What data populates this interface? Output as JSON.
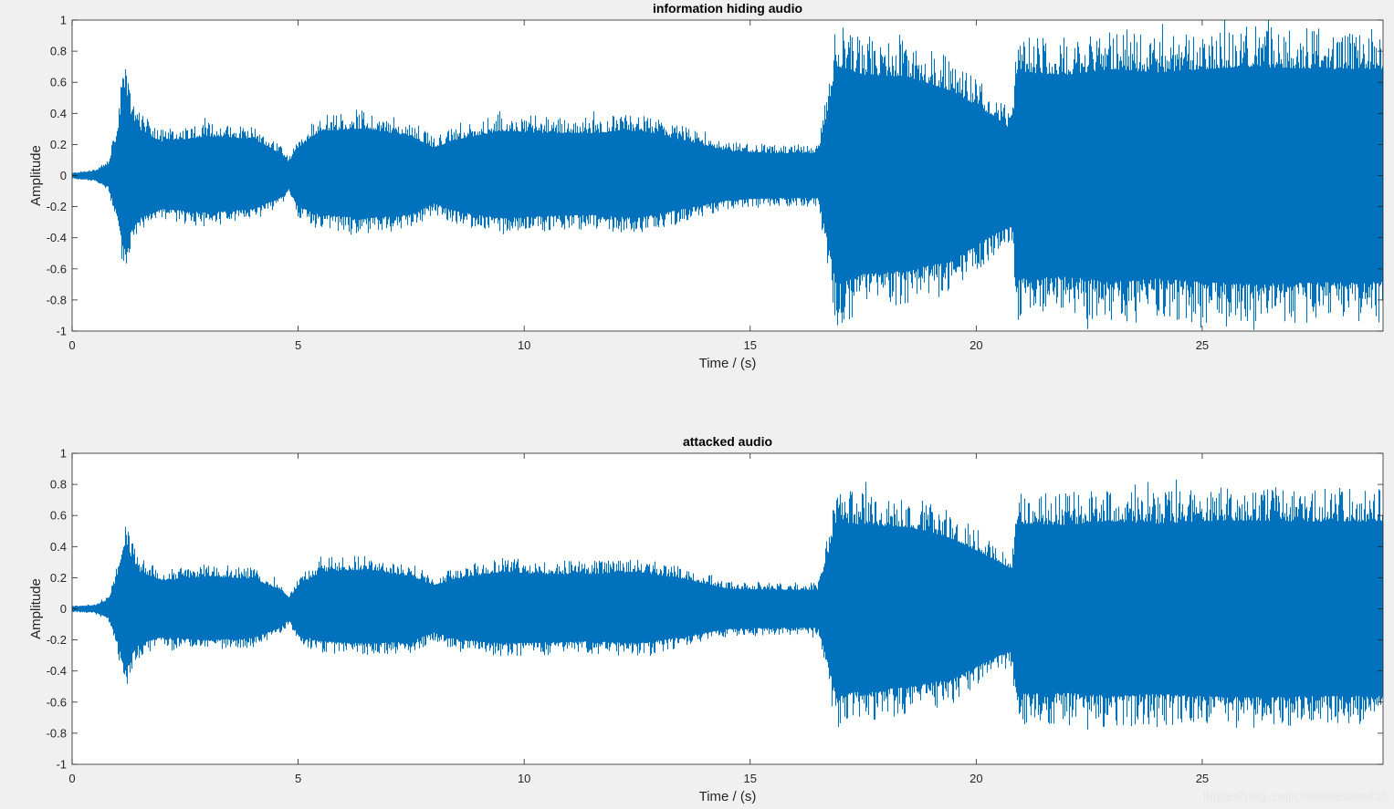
{
  "figure": {
    "background": "#f0f0f0",
    "axes_background": "#ffffff",
    "line_color": "#0072bd",
    "watermark": "https://blog.csdn.net/mahoon411"
  },
  "chart_data": [
    {
      "type": "line",
      "title": "information hiding audio",
      "xlabel": "Time / (s)",
      "ylabel": "Amplitude",
      "xlim": [
        0,
        29
      ],
      "ylim": [
        -1,
        1
      ],
      "xticks": [
        0,
        5,
        10,
        15,
        20,
        25
      ],
      "yticks": [
        -1,
        -0.8,
        -0.6,
        -0.4,
        -0.2,
        0,
        0.2,
        0.4,
        0.6,
        0.8,
        1
      ],
      "ytick_labels": [
        "-1",
        "-0.8",
        "-0.6",
        "-0.4",
        "-0.2",
        "0",
        "0.2",
        "0.4",
        "0.6",
        "0.8",
        "1"
      ],
      "grid": false,
      "envelope": {
        "time": [
          0,
          0.5,
          0.8,
          1.0,
          1.1,
          1.2,
          1.3,
          1.5,
          2.0,
          3.0,
          4.0,
          4.6,
          4.8,
          5.0,
          5.5,
          6.5,
          7.5,
          8.0,
          8.5,
          9.5,
          10.5,
          11.5,
          12.5,
          13.5,
          14.5,
          15.5,
          16.5,
          16.7,
          16.9,
          17.5,
          18.5,
          19.5,
          20.5,
          20.8,
          20.9,
          21.0,
          22.0,
          23.0,
          24.0,
          25.0,
          26.0,
          27.0,
          28.0,
          29.0
        ],
        "upper": [
          0.02,
          0.04,
          0.1,
          0.35,
          0.6,
          0.75,
          0.55,
          0.4,
          0.3,
          0.35,
          0.33,
          0.2,
          0.12,
          0.25,
          0.4,
          0.42,
          0.35,
          0.25,
          0.32,
          0.4,
          0.38,
          0.38,
          0.4,
          0.32,
          0.22,
          0.2,
          0.2,
          0.55,
          0.98,
          0.9,
          0.88,
          0.75,
          0.5,
          0.4,
          0.95,
          0.92,
          0.9,
          0.95,
          0.92,
          0.95,
          0.97,
          0.96,
          0.95,
          0.95
        ],
        "lower": [
          -0.02,
          -0.04,
          -0.1,
          -0.35,
          -0.55,
          -0.72,
          -0.5,
          -0.38,
          -0.3,
          -0.33,
          -0.3,
          -0.2,
          -0.12,
          -0.28,
          -0.35,
          -0.38,
          -0.35,
          -0.25,
          -0.32,
          -0.38,
          -0.36,
          -0.35,
          -0.38,
          -0.3,
          -0.22,
          -0.2,
          -0.2,
          -0.55,
          -0.97,
          -0.88,
          -0.85,
          -0.75,
          -0.5,
          -0.45,
          -0.95,
          -0.92,
          -0.9,
          -0.95,
          -0.92,
          -0.95,
          -0.97,
          -0.96,
          -0.95,
          -0.95
        ]
      }
    },
    {
      "type": "line",
      "title": "attacked audio",
      "xlabel": "Time / (s)",
      "ylabel": "Amplitude",
      "xlim": [
        0,
        29
      ],
      "ylim": [
        -1,
        1
      ],
      "xticks": [
        0,
        5,
        10,
        15,
        20,
        25
      ],
      "yticks": [
        -1,
        -0.8,
        -0.6,
        -0.4,
        -0.2,
        0,
        0.2,
        0.4,
        0.6,
        0.8,
        1
      ],
      "ytick_labels": [
        "-1",
        "-0.8",
        "-0.6",
        "-0.4",
        "-0.2",
        "0",
        "0.2",
        "0.4",
        "0.6",
        "0.8",
        "1"
      ],
      "grid": false,
      "envelope": {
        "time": [
          0,
          0.5,
          0.8,
          1.0,
          1.1,
          1.2,
          1.3,
          1.5,
          2.0,
          3.0,
          4.0,
          4.6,
          4.8,
          5.0,
          5.5,
          6.5,
          7.5,
          8.0,
          8.5,
          9.5,
          10.5,
          11.5,
          12.5,
          13.5,
          14.5,
          15.5,
          16.5,
          16.7,
          16.9,
          17.5,
          18.5,
          19.5,
          20.5,
          20.8,
          20.9,
          21.0,
          22.0,
          23.0,
          24.0,
          25.0,
          26.0,
          27.0,
          28.0,
          29.0
        ],
        "upper": [
          0.02,
          0.03,
          0.08,
          0.28,
          0.48,
          0.6,
          0.45,
          0.33,
          0.25,
          0.29,
          0.27,
          0.17,
          0.1,
          0.2,
          0.33,
          0.35,
          0.29,
          0.21,
          0.27,
          0.33,
          0.31,
          0.31,
          0.33,
          0.27,
          0.18,
          0.17,
          0.17,
          0.45,
          0.78,
          0.75,
          0.73,
          0.62,
          0.42,
          0.35,
          0.78,
          0.76,
          0.75,
          0.78,
          0.76,
          0.78,
          0.79,
          0.78,
          0.78,
          0.78
        ],
        "lower": [
          -0.02,
          -0.03,
          -0.08,
          -0.28,
          -0.45,
          -0.57,
          -0.42,
          -0.31,
          -0.25,
          -0.28,
          -0.26,
          -0.17,
          -0.1,
          -0.23,
          -0.29,
          -0.31,
          -0.29,
          -0.21,
          -0.27,
          -0.31,
          -0.3,
          -0.29,
          -0.31,
          -0.25,
          -0.18,
          -0.17,
          -0.17,
          -0.45,
          -0.78,
          -0.73,
          -0.7,
          -0.62,
          -0.42,
          -0.37,
          -0.78,
          -0.76,
          -0.75,
          -0.78,
          -0.76,
          -0.78,
          -0.79,
          -0.78,
          -0.78,
          -0.78
        ]
      }
    }
  ]
}
